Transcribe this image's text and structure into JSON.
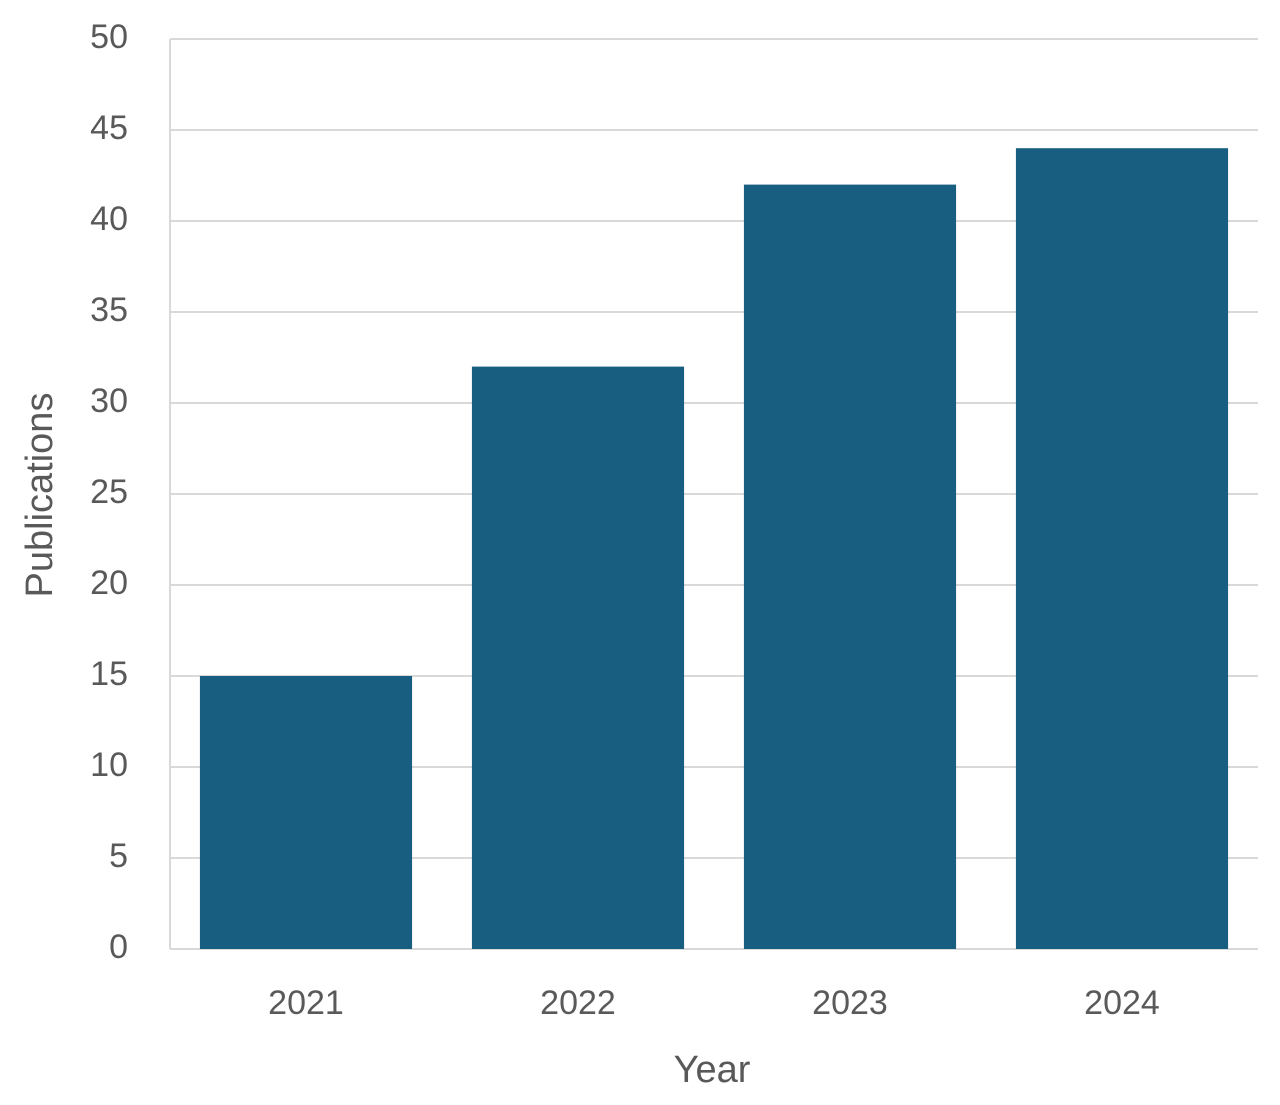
{
  "chart_data": {
    "type": "bar",
    "x_label": "Year",
    "y_label": "Publications",
    "categories": [
      "2021",
      "2022",
      "2023",
      "2024"
    ],
    "values": [
      15,
      32,
      42,
      44
    ],
    "color": "#175e80",
    "ylim": [
      0,
      50
    ],
    "yticks": [
      0,
      5,
      10,
      15,
      20,
      25,
      30,
      35,
      40,
      45,
      50
    ],
    "grid": true
  }
}
